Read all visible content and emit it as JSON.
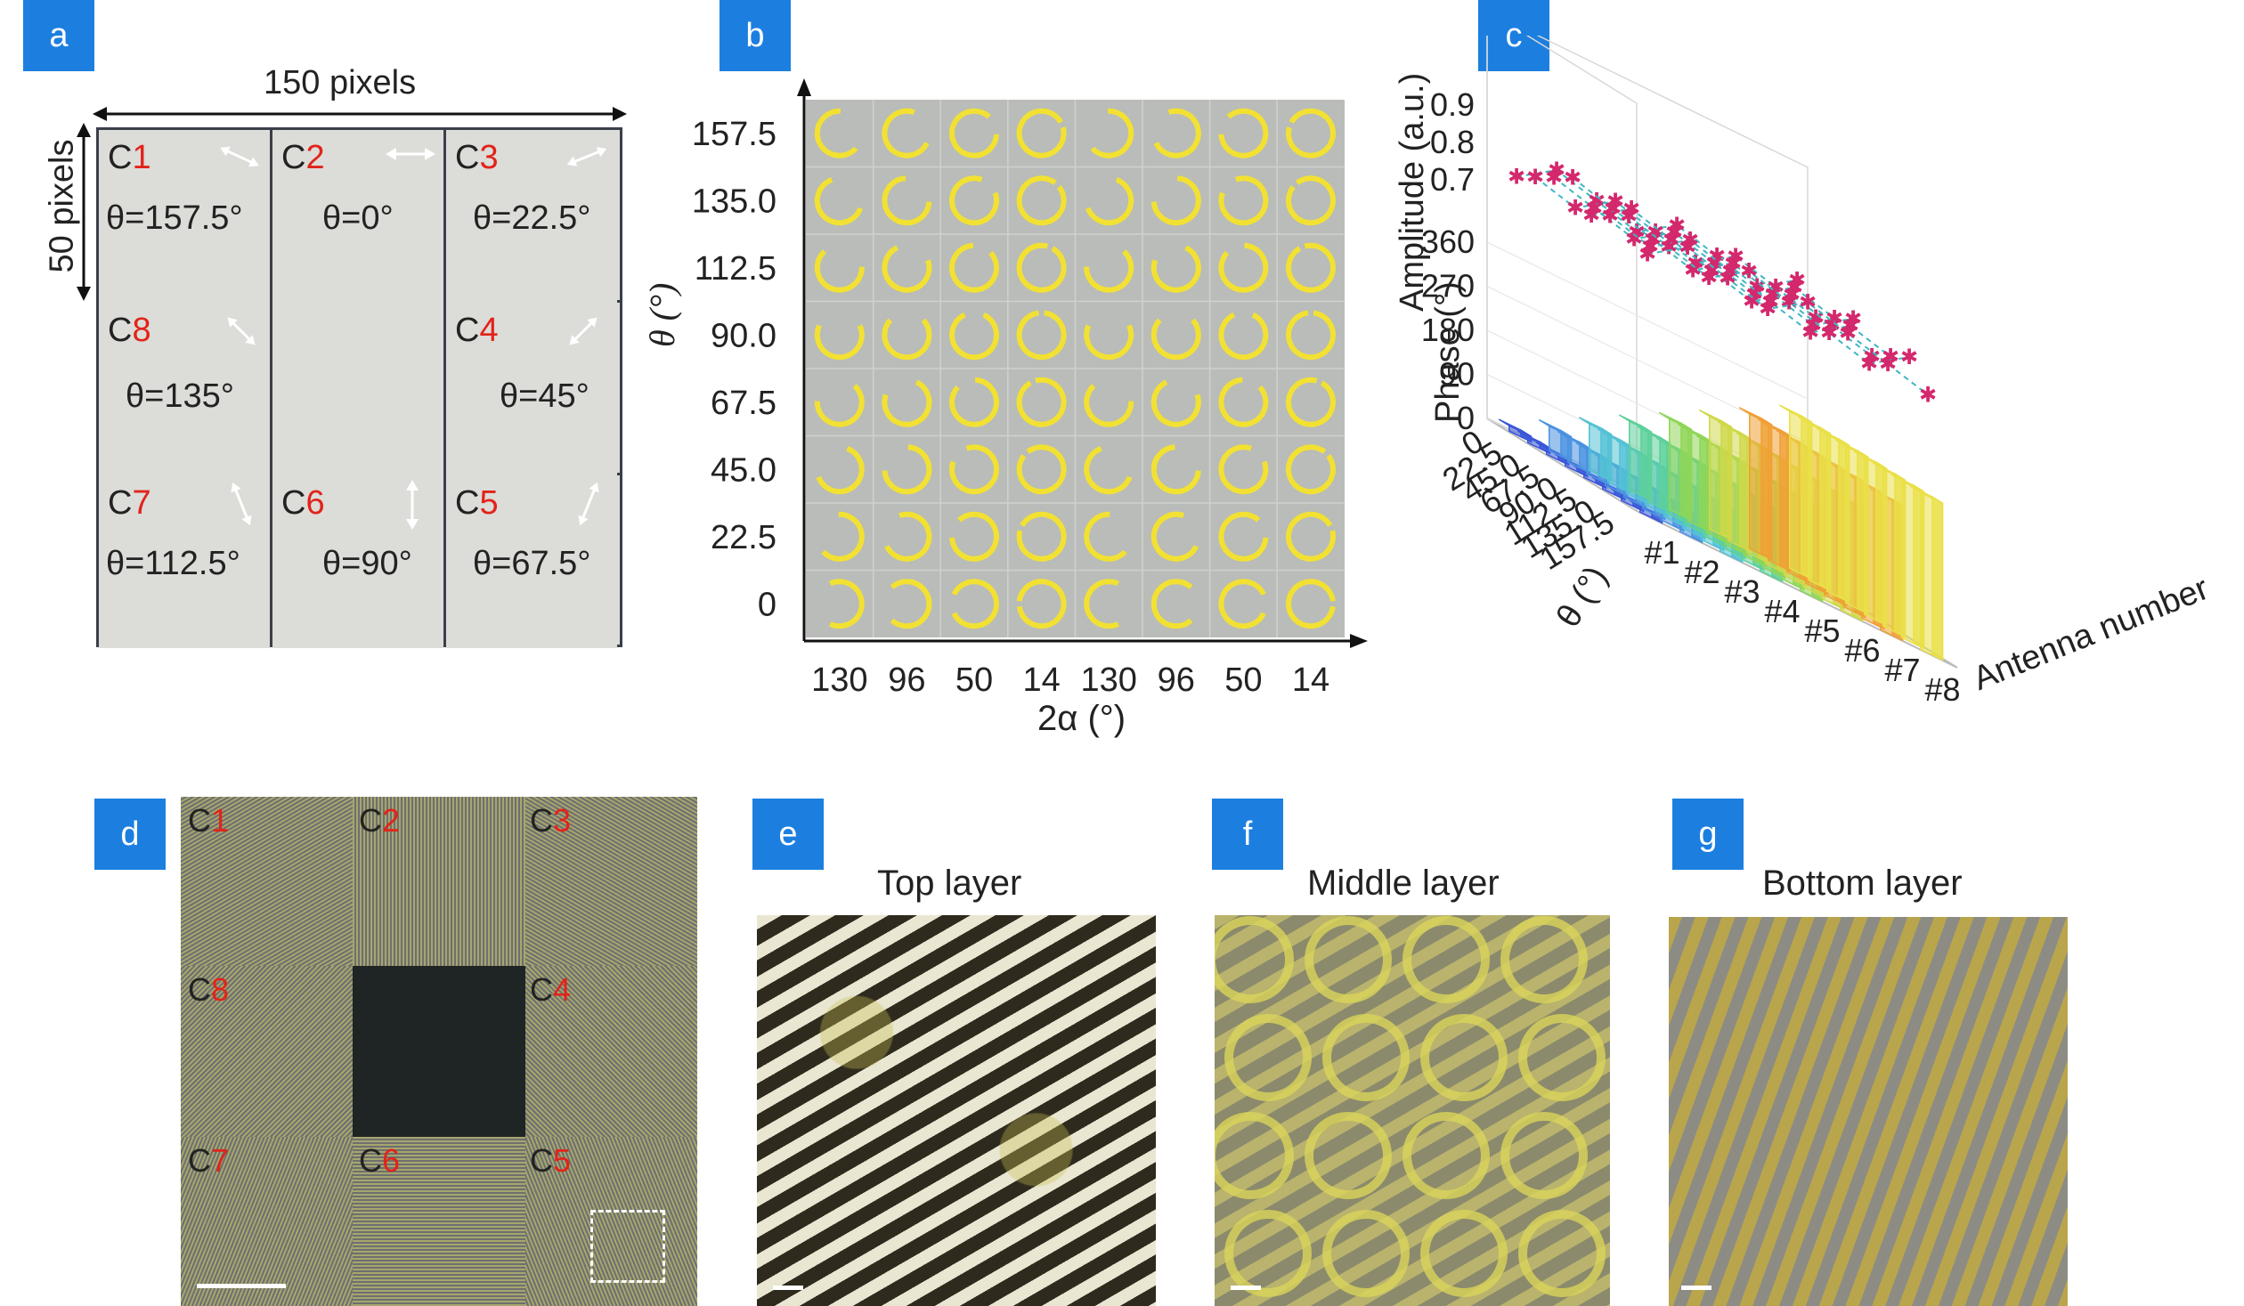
{
  "panels": {
    "a": {
      "tag": "a",
      "width_label": "150 pixels",
      "height_label": "50 pixels",
      "cells": [
        {
          "id_prefix": "C",
          "id_num": "1",
          "theta": "θ=157.5°",
          "icon": "double-arrow-157.5-icon"
        },
        {
          "id_prefix": "C",
          "id_num": "2",
          "theta": "θ=0°",
          "icon": "double-arrow-0-icon"
        },
        {
          "id_prefix": "C",
          "id_num": "3",
          "theta": "θ=22.5°",
          "icon": "double-arrow-22.5-icon"
        },
        {
          "id_prefix": "C",
          "id_num": "8",
          "theta": "θ=135°",
          "icon": "double-arrow-135-icon"
        },
        {
          "id_prefix": "C",
          "id_num": "4",
          "theta": "θ=45°",
          "icon": "double-arrow-45-icon"
        },
        {
          "id_prefix": "C",
          "id_num": "7",
          "theta": "θ=112.5°",
          "icon": "double-arrow-112.5-icon"
        },
        {
          "id_prefix": "C",
          "id_num": "6",
          "theta": "θ=90°",
          "icon": "double-arrow-90-icon"
        },
        {
          "id_prefix": "C",
          "id_num": "5",
          "theta": "θ=67.5°",
          "icon": "double-arrow-67.5-icon"
        }
      ]
    },
    "b": {
      "tag": "b",
      "ylabel": "θ (°)",
      "xlabel": "2α (°)",
      "yticks": [
        "157.5",
        "135.0",
        "112.5",
        "90.0",
        "67.5",
        "45.0",
        "22.5",
        "0"
      ],
      "xticks": [
        "130",
        "96",
        "50",
        "14",
        "130",
        "96",
        "50",
        "14"
      ]
    },
    "c": {
      "tag": "c",
      "z_amp_label": "Amplitude (a.u.)",
      "z_phase_label": "Phase (°)",
      "amp_ticks": [
        "0.9",
        "0.8",
        "0.7"
      ],
      "phase_ticks": [
        "360",
        "270",
        "180",
        "90",
        "0"
      ],
      "theta_axis_label": "θ (°)",
      "theta_ticks": [
        "0",
        "22.5",
        "45.0",
        "67.5",
        "90.0",
        "112.5",
        "135.0",
        "157.5"
      ],
      "antenna_axis_label": "Antenna number",
      "antenna_ticks": [
        "#1",
        "#2",
        "#3",
        "#4",
        "#5",
        "#6",
        "#7",
        "#8"
      ]
    },
    "d": {
      "tag": "d",
      "labels": [
        {
          "p": "C",
          "n": "1"
        },
        {
          "p": "C",
          "n": "2"
        },
        {
          "p": "C",
          "n": "3"
        },
        {
          "p": "C",
          "n": "8"
        },
        {
          "p": "C",
          "n": "4"
        },
        {
          "p": "C",
          "n": "7"
        },
        {
          "p": "C",
          "n": "6"
        },
        {
          "p": "C",
          "n": "5"
        }
      ]
    },
    "e": {
      "tag": "e",
      "title": "Top layer"
    },
    "f": {
      "tag": "f",
      "title": "Middle layer"
    },
    "g": {
      "tag": "g",
      "title": "Bottom layer"
    }
  },
  "colors": {
    "tag_bg": "#1c7fe0",
    "highlight_red": "#e2231a",
    "ring_yellow": "#f2e133",
    "grid_gray": "#b9bcb8"
  }
}
